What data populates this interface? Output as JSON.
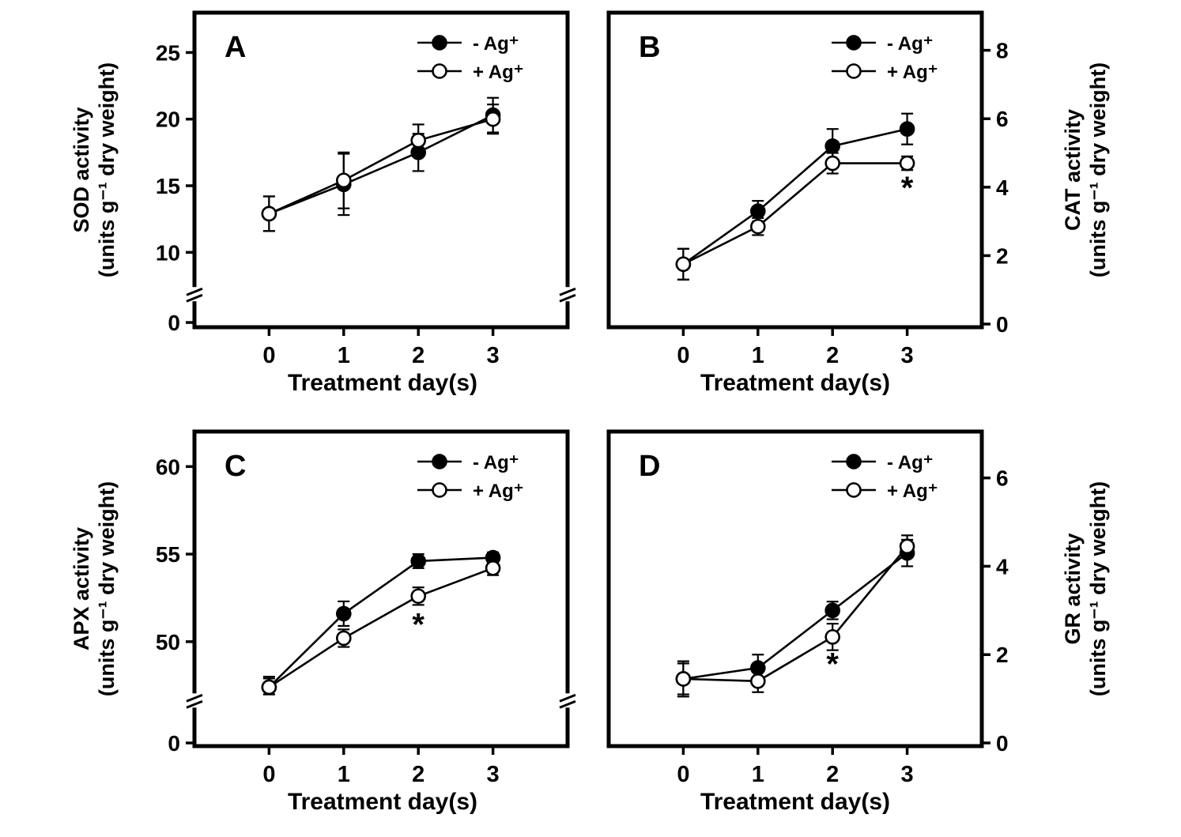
{
  "figure": {
    "background_color": "#ffffff",
    "ink_color": "#000000"
  },
  "chart_data": [
    {
      "id": "A",
      "type": "line",
      "panel_label": "A",
      "ylabel_line1": "SOD activity",
      "ylabel_line2": "(units g⁻¹ dry weight)",
      "xlabel": "Treatment day(s)",
      "x": [
        0,
        1,
        2,
        3
      ],
      "x_ticks": [
        0,
        1,
        2,
        3
      ],
      "y_ticks": [
        0,
        10,
        15,
        20,
        25
      ],
      "y_axis_side": "left",
      "y_axis_break": true,
      "y_break_frac": 0.105,
      "y_map": [
        [
          0,
          0.015
        ],
        [
          10,
          0.238
        ],
        [
          27,
          0.958
        ]
      ],
      "legend_pos": "inside-top-right",
      "series": [
        {
          "name": "- Ag⁺",
          "marker": "filled",
          "values": [
            12.9,
            15.1,
            17.5,
            20.3
          ],
          "errors": [
            1.3,
            2.3,
            1.4,
            1.3
          ]
        },
        {
          "name": "+ Ag⁺",
          "marker": "open",
          "values": [
            12.9,
            15.4,
            18.4,
            20.0
          ],
          "errors": [
            1.3,
            2.1,
            1.2,
            1.1
          ]
        }
      ],
      "annotations": []
    },
    {
      "id": "B",
      "type": "line",
      "panel_label": "B",
      "ylabel_line1": "CAT activity",
      "ylabel_line2": "(units g⁻¹ dry weight)",
      "xlabel": "Treatment day(s)",
      "x": [
        0,
        1,
        2,
        3
      ],
      "x_ticks": [
        0,
        1,
        2,
        3
      ],
      "y_ticks": [
        0,
        2,
        4,
        6,
        8
      ],
      "y_axis_side": "right",
      "y_axis_break": false,
      "y_break_frac": null,
      "y_map": [
        [
          0,
          0.01
        ],
        [
          9.1,
          1.0
        ]
      ],
      "legend_pos": "inside-top-right",
      "series": [
        {
          "name": "- Ag⁺",
          "marker": "filled",
          "values": [
            1.75,
            3.3,
            5.2,
            5.7
          ],
          "errors": [
            0.45,
            0.3,
            0.5,
            0.45
          ]
        },
        {
          "name": "+ Ag⁺",
          "marker": "open",
          "values": [
            1.75,
            2.85,
            4.7,
            4.7
          ],
          "errors": [
            0.45,
            0.25,
            0.3,
            0.2
          ]
        }
      ],
      "annotations": [
        {
          "x": 3,
          "y": 4.0,
          "text": "*"
        }
      ]
    },
    {
      "id": "C",
      "type": "line",
      "panel_label": "C",
      "ylabel_line1": "APX activity",
      "ylabel_line2": "(units g⁻¹ dry weight)",
      "xlabel": "Treatment day(s)",
      "x": [
        0,
        1,
        2,
        3
      ],
      "x_ticks": [
        0,
        1,
        2,
        3
      ],
      "y_ticks": [
        0,
        50,
        55,
        60
      ],
      "y_axis_side": "left",
      "y_axis_break": true,
      "y_break_frac": 0.145,
      "y_map": [
        [
          0,
          0.01
        ],
        [
          47,
          0.165
        ],
        [
          62,
          1.0
        ]
      ],
      "legend_pos": "inside-top-right",
      "series": [
        {
          "name": "- Ag⁺",
          "marker": "filled",
          "values": [
            47.4,
            51.6,
            54.6,
            54.8
          ],
          "errors": [
            0.5,
            0.7,
            0.4,
            0.3
          ]
        },
        {
          "name": "+ Ag⁺",
          "marker": "open",
          "values": [
            47.4,
            50.2,
            52.6,
            54.2
          ],
          "errors": [
            0.6,
            0.5,
            0.5,
            0.4
          ]
        }
      ],
      "annotations": [
        {
          "x": 2,
          "y": 51.0,
          "text": "*"
        }
      ]
    },
    {
      "id": "D",
      "type": "line",
      "panel_label": "D",
      "ylabel_line1": "GR activity",
      "ylabel_line2": "(units g⁻¹ dry weight)",
      "xlabel": "Treatment day(s)",
      "x": [
        0,
        1,
        2,
        3
      ],
      "x_ticks": [
        0,
        1,
        2,
        3
      ],
      "y_ticks": [
        0,
        2,
        4,
        6
      ],
      "y_axis_side": "right",
      "y_axis_break": false,
      "y_break_frac": null,
      "y_map": [
        [
          0,
          0.01
        ],
        [
          7.05,
          1.0
        ]
      ],
      "legend_pos": "inside-top-right",
      "series": [
        {
          "name": "- Ag⁺",
          "marker": "filled",
          "values": [
            1.45,
            1.7,
            3.0,
            4.3
          ],
          "errors": [
            0.35,
            0.3,
            0.2,
            0.3
          ]
        },
        {
          "name": "+ Ag⁺",
          "marker": "open",
          "values": [
            1.45,
            1.4,
            2.4,
            4.45
          ],
          "errors": [
            0.4,
            0.25,
            0.3,
            0.25
          ]
        }
      ],
      "annotations": [
        {
          "x": 2,
          "y": 1.8,
          "text": "*"
        }
      ]
    }
  ]
}
